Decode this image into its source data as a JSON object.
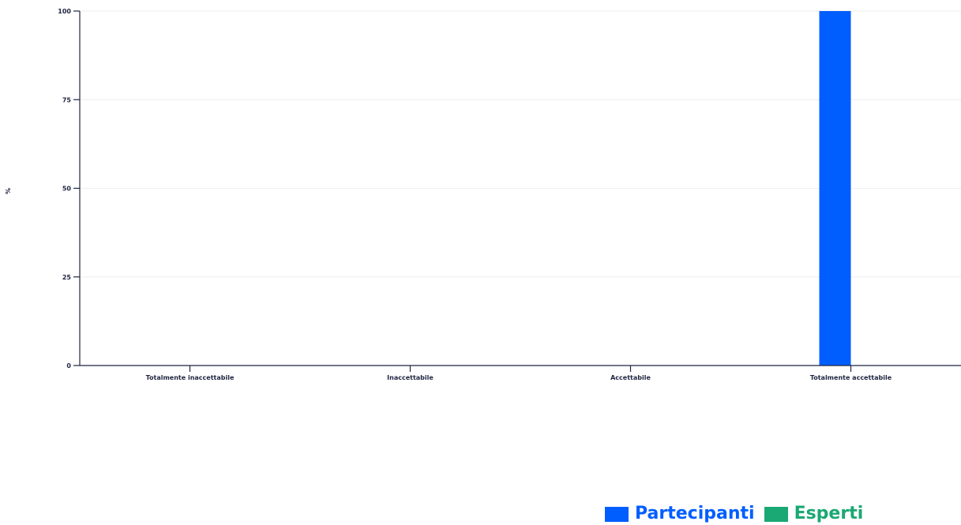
{
  "chart_data": {
    "type": "bar",
    "ylabel": "%",
    "ylim": [
      0,
      100
    ],
    "yticks": [
      0,
      25,
      50,
      75,
      100
    ],
    "grid": true,
    "legend_position": "bottom-right",
    "categories": [
      "Totalmente inaccettabile",
      "Inaccettabile",
      "Accettabile",
      "Totalmente accettabile"
    ],
    "series": [
      {
        "name": "Partecipanti",
        "color": "#005eff",
        "values": [
          0,
          0,
          0,
          100
        ]
      },
      {
        "name": "Esperti",
        "color": "#1aa874",
        "values": [
          0,
          0,
          0,
          0
        ]
      }
    ]
  }
}
